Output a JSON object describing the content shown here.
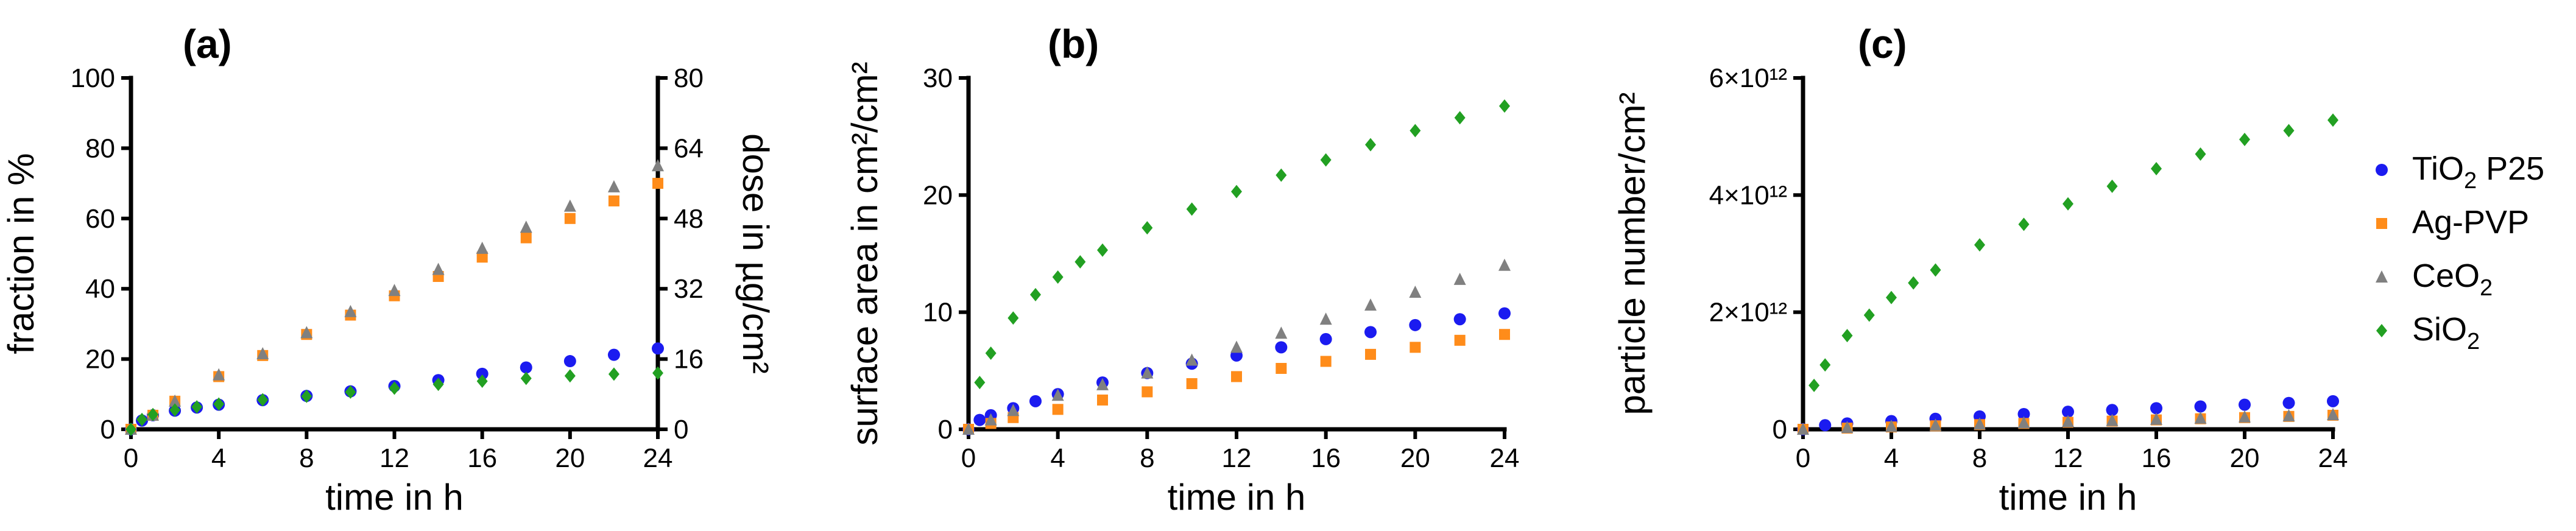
{
  "chart_data": [
    {
      "panel": "(a)",
      "type": "scatter",
      "xlabel": "time in h",
      "ylabel": "fraction in %",
      "y2label": "dose in µg/cm²",
      "xlim": [
        0,
        24
      ],
      "ylim": [
        0,
        100
      ],
      "y2lim": [
        0,
        80
      ],
      "xticks": [
        "0",
        "4",
        "8",
        "12",
        "16",
        "20",
        "24"
      ],
      "yticks": [
        "0",
        "20",
        "40",
        "60",
        "80",
        "100"
      ],
      "y2ticks": [
        "0",
        "16",
        "32",
        "48",
        "64",
        "80"
      ],
      "series": [
        {
          "name": "TiO2 P25",
          "shape": "circle",
          "color": "#1b1bf0",
          "x": [
            0,
            0.5,
            1,
            2,
            3,
            4,
            6,
            8,
            10,
            12,
            14,
            16,
            18,
            20,
            22,
            24
          ],
          "values": [
            0,
            2.5,
            4,
            5.3,
            6.2,
            7,
            8.3,
            9.5,
            10.8,
            12.3,
            14,
            15.8,
            17.6,
            19.4,
            21.2,
            23
          ]
        },
        {
          "name": "Ag-PVP",
          "shape": "square",
          "color": "#ff8c1a",
          "x": [
            0,
            1,
            2,
            4,
            6,
            8,
            10,
            12,
            14,
            16,
            18,
            20,
            22,
            24
          ],
          "values": [
            0,
            4,
            8,
            15,
            21,
            27,
            32.5,
            38,
            43.5,
            49,
            54.5,
            60,
            65,
            70
          ]
        },
        {
          "name": "CeO2",
          "shape": "triangle",
          "color": "#808080",
          "x": [
            0,
            1,
            2,
            4,
            6,
            8,
            10,
            12,
            14,
            16,
            18,
            20,
            22,
            24
          ],
          "values": [
            0,
            4,
            8,
            15.5,
            21.5,
            27.5,
            33.5,
            39.5,
            45.5,
            51.5,
            57.5,
            63.5,
            69,
            75
          ]
        },
        {
          "name": "SiO2",
          "shape": "diamond",
          "color": "#22a022",
          "x": [
            0,
            0.5,
            1,
            2,
            3,
            4,
            6,
            8,
            10,
            12,
            14,
            16,
            18,
            20,
            22,
            24
          ],
          "values": [
            0,
            2.8,
            4.2,
            5.5,
            6.4,
            7.2,
            8.4,
            9.4,
            10.6,
            11.7,
            12.8,
            13.7,
            14.5,
            15.2,
            15.7,
            16
          ]
        }
      ]
    },
    {
      "panel": "(b)",
      "type": "scatter",
      "xlabel": "time in h",
      "ylabel": "surface area in cm²/cm²",
      "xlim": [
        0,
        24
      ],
      "ylim": [
        0,
        30
      ],
      "xticks": [
        "0",
        "4",
        "8",
        "12",
        "16",
        "20",
        "24"
      ],
      "yticks": [
        "0",
        "10",
        "20",
        "30"
      ],
      "series": [
        {
          "name": "TiO2 P25",
          "shape": "circle",
          "color": "#1b1bf0",
          "x": [
            0,
            0.5,
            1,
            2,
            3,
            4,
            6,
            8,
            10,
            12,
            14,
            16,
            18,
            20,
            22,
            24
          ],
          "values": [
            0,
            0.8,
            1.2,
            1.8,
            2.4,
            3.0,
            4.0,
            4.8,
            5.6,
            6.3,
            7.0,
            7.7,
            8.3,
            8.9,
            9.4,
            9.9
          ]
        },
        {
          "name": "Ag-PVP",
          "shape": "square",
          "color": "#ff8c1a",
          "x": [
            0,
            1,
            2,
            4,
            6,
            8,
            10,
            12,
            14,
            16,
            18,
            20,
            22,
            24
          ],
          "values": [
            0,
            0.5,
            1.0,
            1.7,
            2.5,
            3.2,
            3.9,
            4.5,
            5.2,
            5.8,
            6.4,
            7.0,
            7.6,
            8.1
          ]
        },
        {
          "name": "CeO2",
          "shape": "triangle",
          "color": "#808080",
          "x": [
            0,
            1,
            2,
            4,
            6,
            8,
            10,
            12,
            14,
            16,
            18,
            20,
            22,
            24
          ],
          "values": [
            0,
            0.8,
            1.6,
            2.9,
            3.8,
            4.8,
            5.9,
            7.0,
            8.2,
            9.4,
            10.6,
            11.7,
            12.8,
            14.0
          ]
        },
        {
          "name": "SiO2",
          "shape": "diamond",
          "color": "#22a022",
          "x": [
            0.5,
            1,
            2,
            3,
            4,
            5,
            6,
            8,
            10,
            12,
            14,
            16,
            18,
            20,
            22,
            24
          ],
          "values": [
            4,
            6.5,
            9.5,
            11.5,
            13,
            14.3,
            15.3,
            17.2,
            18.8,
            20.3,
            21.7,
            23.0,
            24.3,
            25.5,
            26.6,
            27.6
          ]
        }
      ]
    },
    {
      "panel": "(c)",
      "type": "scatter",
      "xlabel": "time in h",
      "ylabel": "particle number/cm²",
      "xlim": [
        0,
        24
      ],
      "ylim": [
        0,
        6
      ],
      "y_unit_note": "values in units of 10^12",
      "xticks": [
        "0",
        "4",
        "8",
        "12",
        "16",
        "20",
        "24"
      ],
      "yticks": [
        "0",
        "2×10¹²",
        "4×10¹²",
        "6×10¹²"
      ],
      "series": [
        {
          "name": "TiO2 P25",
          "shape": "circle",
          "color": "#1b1bf0",
          "x": [
            0,
            1,
            2,
            4,
            6,
            8,
            10,
            12,
            14,
            16,
            18,
            20,
            22,
            24
          ],
          "values": [
            0,
            0.07,
            0.1,
            0.14,
            0.18,
            0.22,
            0.26,
            0.3,
            0.33,
            0.36,
            0.39,
            0.42,
            0.45,
            0.48
          ]
        },
        {
          "name": "Ag-PVP",
          "shape": "square",
          "color": "#ff8c1a",
          "x": [
            0,
            2,
            4,
            6,
            8,
            10,
            12,
            14,
            16,
            18,
            20,
            22,
            24
          ],
          "values": [
            0,
            0.02,
            0.04,
            0.06,
            0.08,
            0.1,
            0.12,
            0.14,
            0.16,
            0.18,
            0.2,
            0.22,
            0.24
          ]
        },
        {
          "name": "CeO2",
          "shape": "triangle",
          "color": "#808080",
          "x": [
            0,
            2,
            4,
            6,
            8,
            10,
            12,
            14,
            16,
            18,
            20,
            22,
            24
          ],
          "values": [
            0,
            0.03,
            0.05,
            0.07,
            0.09,
            0.11,
            0.13,
            0.15,
            0.17,
            0.19,
            0.21,
            0.23,
            0.25
          ]
        },
        {
          "name": "SiO2",
          "shape": "diamond",
          "color": "#22a022",
          "x": [
            0.5,
            1,
            2,
            3,
            4,
            5,
            6,
            8,
            10,
            12,
            14,
            16,
            18,
            20,
            22,
            24
          ],
          "values": [
            0.75,
            1.1,
            1.6,
            1.95,
            2.25,
            2.5,
            2.72,
            3.15,
            3.5,
            3.85,
            4.15,
            4.45,
            4.7,
            4.95,
            5.1,
            5.28
          ]
        }
      ]
    }
  ],
  "legend": [
    {
      "label": "TiO",
      "sub": "2",
      "suffix": " P25",
      "shape": "circle",
      "color": "#1b1bf0"
    },
    {
      "label": "Ag-PVP",
      "sub": "",
      "suffix": "",
      "shape": "square",
      "color": "#ff8c1a"
    },
    {
      "label": "CeO",
      "sub": "2",
      "suffix": "",
      "shape": "triangle",
      "color": "#808080"
    },
    {
      "label": "SiO",
      "sub": "2",
      "suffix": "",
      "shape": "diamond",
      "color": "#22a022"
    }
  ]
}
